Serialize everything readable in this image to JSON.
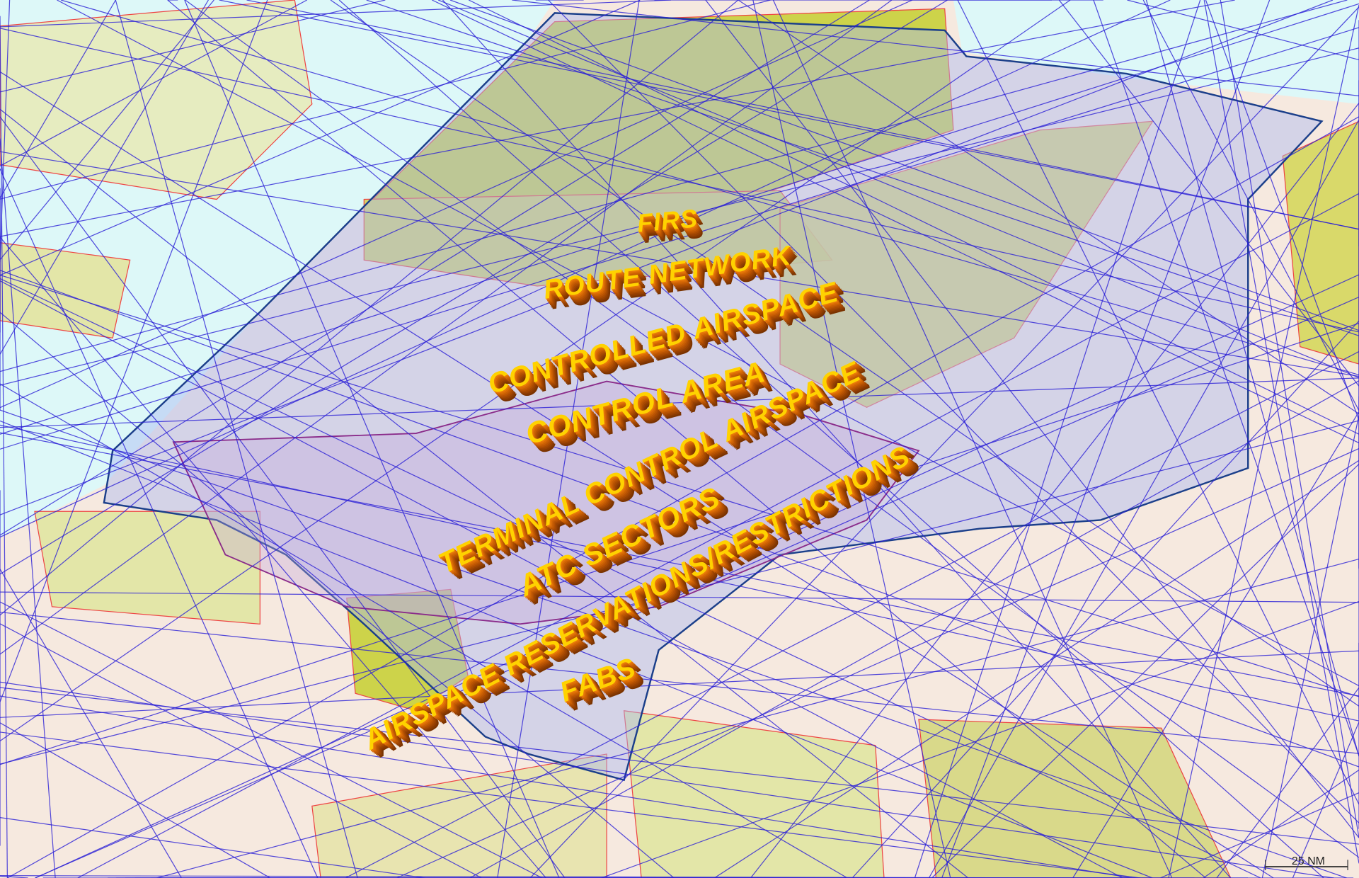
{
  "labels": [
    "FIRS",
    "ROUTE NETWORK",
    "CONTROLLED AIRSPACE",
    "CONTROL AREA",
    "TERMINAL CONTROL AIRSPACE",
    "ATC SECTORS",
    "AIRSPACE RESERVATIONS/RESTRICTIONS",
    "FABS"
  ],
  "scale_bar": "25 NM"
}
